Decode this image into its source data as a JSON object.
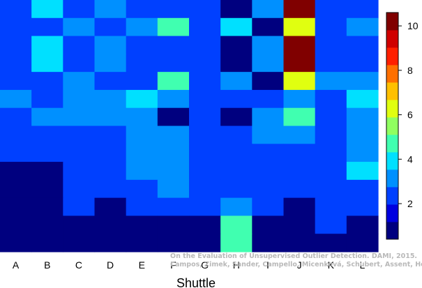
{
  "chart_data": {
    "type": "heatmap",
    "title": "",
    "xlabel": "Shuttle",
    "ylabel": "",
    "columns": [
      "A",
      "B",
      "C",
      "D",
      "E",
      "F",
      "G",
      "H",
      "I",
      "J",
      "K",
      "L"
    ],
    "row_order": "top-to-bottom",
    "values": [
      [
        2,
        4,
        2,
        3,
        2,
        2,
        2,
        1,
        3,
        10,
        2,
        2
      ],
      [
        2,
        2,
        3,
        2,
        3,
        5,
        2,
        4,
        1,
        6,
        2,
        3
      ],
      [
        2,
        4,
        2,
        3,
        2,
        2,
        2,
        1,
        3,
        10,
        2,
        2
      ],
      [
        2,
        4,
        2,
        3,
        2,
        2,
        2,
        1,
        3,
        10,
        2,
        2
      ],
      [
        2,
        2,
        3,
        2,
        2,
        5,
        2,
        3,
        1,
        6,
        3,
        3
      ],
      [
        3,
        2,
        3,
        3,
        4,
        3,
        2,
        2,
        2,
        3,
        2,
        4
      ],
      [
        2,
        3,
        3,
        3,
        3,
        1,
        2,
        1,
        3,
        5,
        2,
        3
      ],
      [
        2,
        2,
        2,
        2,
        3,
        3,
        2,
        2,
        3,
        3,
        2,
        3
      ],
      [
        2,
        2,
        2,
        2,
        3,
        3,
        2,
        2,
        2,
        2,
        2,
        3
      ],
      [
        1,
        1,
        2,
        2,
        3,
        3,
        2,
        2,
        2,
        2,
        2,
        4
      ],
      [
        1,
        1,
        2,
        2,
        2,
        3,
        2,
        2,
        2,
        2,
        2,
        2
      ],
      [
        1,
        1,
        2,
        1,
        2,
        2,
        2,
        3,
        2,
        1,
        2,
        2
      ],
      [
        1,
        1,
        1,
        1,
        1,
        1,
        1,
        5,
        1,
        1,
        2,
        1
      ],
      [
        1,
        1,
        1,
        1,
        1,
        1,
        1,
        5,
        1,
        1,
        1,
        1
      ]
    ],
    "colorbar": {
      "range": [
        0.4,
        10.6
      ],
      "ticks": [
        2,
        4,
        6,
        8,
        10
      ],
      "colors": [
        "#00007F",
        "#0000DF",
        "#0040FF",
        "#0090FF",
        "#00E0FF",
        "#40FFB0",
        "#90FF60",
        "#E0FF10",
        "#FFC000",
        "#FF7000",
        "#FF2000",
        "#D00000",
        "#800000"
      ]
    },
    "grid": false
  },
  "citation": [
    "On the Evaluation of Unsupervised Outlier Detection. DAMI, 2015.",
    "Campos, Zimek, Sander, Campello, Micenková, Schubert, Assent, Houle"
  ]
}
